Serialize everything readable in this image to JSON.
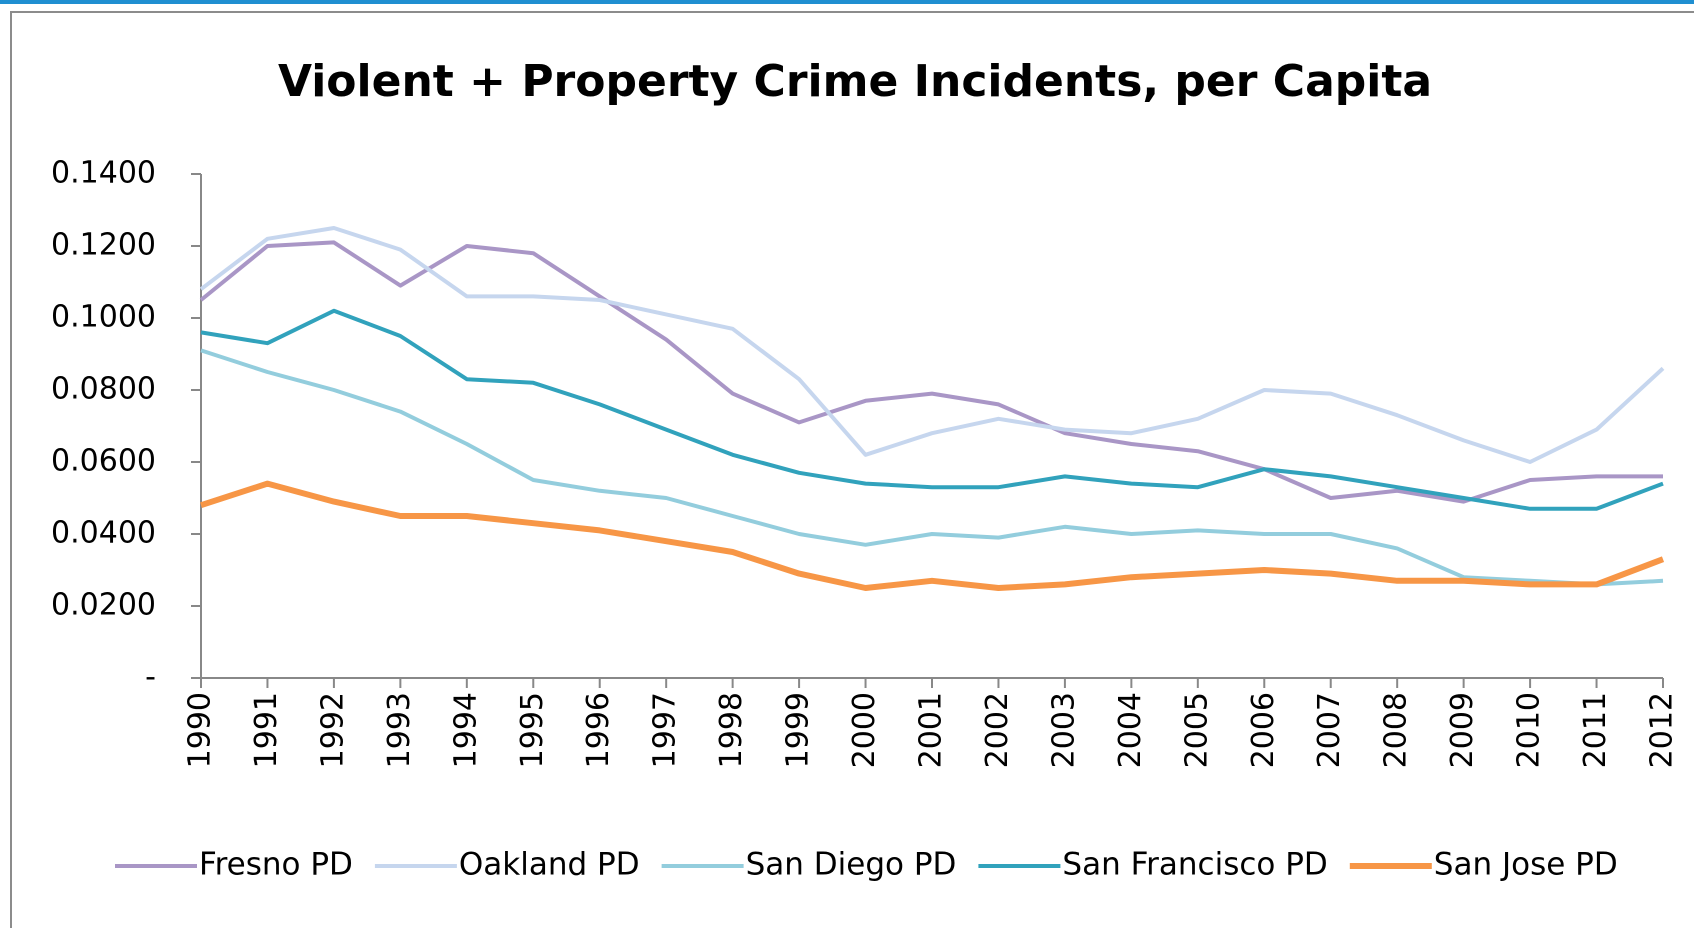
{
  "chart_data": {
    "type": "line",
    "title": "Violent + Property Crime Incidents, per Capita",
    "categories": [
      "1990",
      "1991",
      "1992",
      "1993",
      "1994",
      "1995",
      "1996",
      "1997",
      "1998",
      "1999",
      "2000",
      "2001",
      "2002",
      "2003",
      "2004",
      "2005",
      "2006",
      "2007",
      "2008",
      "2009",
      "2010",
      "2011",
      "2012"
    ],
    "series": [
      {
        "name": "Fresno PD",
        "color": "#a996c6",
        "values": [
          0.105,
          0.12,
          0.121,
          0.109,
          0.12,
          0.118,
          0.106,
          0.094,
          0.079,
          0.071,
          0.077,
          0.079,
          0.076,
          0.068,
          0.065,
          0.063,
          0.058,
          0.05,
          0.052,
          0.049,
          0.055,
          0.056,
          0.056
        ]
      },
      {
        "name": "Oakland PD",
        "color": "#c6d6ee",
        "values": [
          0.108,
          0.122,
          0.125,
          0.119,
          0.106,
          0.106,
          0.105,
          0.101,
          0.097,
          0.083,
          0.062,
          0.068,
          0.072,
          0.069,
          0.068,
          0.072,
          0.08,
          0.079,
          0.073,
          0.066,
          0.06,
          0.069,
          0.086
        ]
      },
      {
        "name": "San Diego PD",
        "color": "#93cddd",
        "values": [
          0.091,
          0.085,
          0.08,
          0.074,
          0.065,
          0.055,
          0.052,
          0.05,
          0.045,
          0.04,
          0.037,
          0.04,
          0.039,
          0.042,
          0.04,
          0.041,
          0.04,
          0.04,
          0.036,
          0.028,
          0.027,
          0.026,
          0.027
        ]
      },
      {
        "name": "San Francisco PD",
        "color": "#31a2bc",
        "values": [
          0.096,
          0.093,
          0.102,
          0.095,
          0.083,
          0.082,
          0.076,
          0.069,
          0.062,
          0.057,
          0.054,
          0.053,
          0.053,
          0.056,
          0.054,
          0.053,
          0.058,
          0.056,
          0.053,
          0.05,
          0.047,
          0.047,
          0.054
        ]
      },
      {
        "name": "San Jose PD",
        "color": "#f79646",
        "values": [
          0.048,
          0.054,
          0.049,
          0.045,
          0.045,
          0.043,
          0.041,
          0.038,
          0.035,
          0.029,
          0.025,
          0.027,
          0.025,
          0.026,
          0.028,
          0.029,
          0.03,
          0.029,
          0.027,
          0.027,
          0.026,
          0.026,
          0.033
        ]
      }
    ],
    "ylim": [
      0,
      0.14
    ],
    "yticks": [
      {
        "value": 0,
        "label": "-"
      },
      {
        "value": 0.02,
        "label": "0.0200"
      },
      {
        "value": 0.04,
        "label": "0.0400"
      },
      {
        "value": 0.06,
        "label": "0.0600"
      },
      {
        "value": 0.08,
        "label": "0.0800"
      },
      {
        "value": 0.1,
        "label": "0.1000"
      },
      {
        "value": 0.12,
        "label": "0.1200"
      },
      {
        "value": 0.14,
        "label": "0.1400"
      }
    ],
    "legend": "bottom",
    "grid": false
  }
}
